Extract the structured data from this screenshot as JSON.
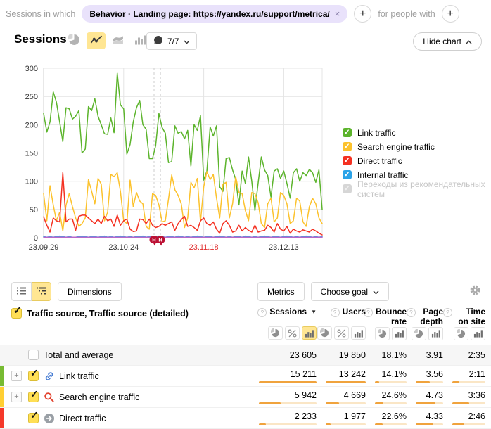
{
  "icons": {
    "plus": "+",
    "close": "×",
    "sort_desc": "▼",
    "help": "?",
    "expand": "+"
  },
  "filter_bar": {
    "prefix_label": "Sessions in which",
    "chip_text": "Behavior · Landing page: https://yandex.ru/support/metrica/",
    "suffix_label": "for people with"
  },
  "chart_header": {
    "title": "Sessions",
    "annotations_count": "7/7",
    "hide_chart_label": "Hide chart"
  },
  "chart_data": {
    "type": "line",
    "title": "Sessions",
    "ylim": [
      0,
      300
    ],
    "yticks": [
      0,
      50,
      100,
      150,
      200,
      250,
      300
    ],
    "xticks": [
      {
        "label": "23.09.29",
        "day": 0
      },
      {
        "label": "23.10.24",
        "day": 25
      },
      {
        "label": "23.11.18",
        "day": 50,
        "highlight": true
      },
      {
        "label": "23.12.13",
        "day": 75
      }
    ],
    "days_total": 88,
    "grid": true,
    "legend_position": "right",
    "annotation_markers": {
      "label": "Н",
      "days": [
        34.5,
        36.5
      ],
      "color": "#bc1134"
    },
    "series": [
      {
        "name": "Link traffic",
        "color": "#5cb42c",
        "values": [
          220,
          187,
          205,
          258,
          240,
          205,
          170,
          230,
          228,
          210,
          215,
          225,
          150,
          157,
          232,
          225,
          246,
          215,
          200,
          184,
          183,
          212,
          186,
          291,
          235,
          228,
          148,
          165,
          205,
          230,
          243,
          200,
          192,
          140,
          140,
          163,
          220,
          195,
          185,
          133,
          135,
          198,
          185,
          188,
          175,
          190,
          127,
          200,
          190,
          216,
          102,
          118,
          196,
          180,
          198,
          90,
          82,
          140,
          142,
          120,
          103,
          58,
          118,
          96,
          143,
          100,
          48,
          97,
          143,
          120,
          110,
          72,
          118,
          122,
          105,
          118,
          96,
          70,
          115,
          122,
          100,
          115,
          110,
          121,
          115,
          98,
          120,
          50
        ]
      },
      {
        "name": "Search engine traffic",
        "color": "#fcc22d",
        "values": [
          78,
          30,
          92,
          58,
          30,
          45,
          12,
          58,
          78,
          55,
          35,
          20,
          25,
          35,
          103,
          82,
          60,
          105,
          95,
          30,
          45,
          112,
          108,
          115,
          82,
          30,
          25,
          102,
          55,
          80,
          65,
          60,
          20,
          15,
          78,
          75,
          58,
          28,
          30,
          68,
          111,
          85,
          75,
          60,
          18,
          35,
          98,
          88,
          105,
          28,
          90,
          117,
          103,
          112,
          70,
          35,
          95,
          98,
          35,
          60,
          108,
          80,
          78,
          48,
          30,
          80,
          78,
          62,
          25,
          18,
          60,
          70,
          28,
          35,
          80,
          75,
          60,
          25,
          30,
          70,
          65,
          28,
          20,
          55,
          70,
          60,
          35,
          25
        ]
      },
      {
        "name": "Direct traffic",
        "color": "#f43122",
        "values": [
          37,
          22,
          10,
          35,
          30,
          28,
          115,
          28,
          33,
          33,
          13,
          38,
          40,
          40,
          35,
          30,
          25,
          33,
          25,
          38,
          30,
          33,
          20,
          40,
          22,
          30,
          33,
          15,
          11,
          12,
          33,
          32,
          25,
          33,
          22,
          18,
          20,
          25,
          22,
          25,
          28,
          13,
          25,
          32,
          38,
          20,
          22,
          18,
          13,
          30,
          35,
          25,
          22,
          28,
          15,
          8,
          25,
          30,
          22,
          10,
          12,
          22,
          12,
          18,
          13,
          10,
          22,
          10,
          12,
          13,
          22,
          18,
          10,
          25,
          15,
          12,
          20,
          8,
          15,
          12,
          10,
          14,
          12,
          10,
          15,
          12,
          8,
          5
        ]
      },
      {
        "name": "Internal traffic",
        "color": "#2ba3e8",
        "values": [
          2,
          1,
          2,
          1,
          2,
          3,
          2,
          1,
          2,
          1,
          1,
          2,
          3,
          2,
          1,
          2,
          2,
          1,
          2,
          3,
          1,
          2,
          1,
          2,
          3,
          2,
          1,
          2,
          1,
          2,
          2,
          3,
          1,
          2,
          1,
          2,
          3,
          2,
          1,
          2,
          2,
          1,
          3,
          2,
          1,
          2,
          1,
          2,
          3,
          2,
          1,
          2,
          2,
          1,
          2,
          3,
          2,
          1,
          2,
          1,
          2,
          2,
          1,
          3,
          2,
          1,
          2,
          1,
          2,
          3,
          2,
          1,
          2,
          2,
          1,
          2,
          3,
          2,
          1,
          2,
          1,
          2,
          3,
          2,
          1,
          2,
          1,
          2
        ]
      },
      {
        "name": "Переходы из рекомендательных систем",
        "color": "#b869c9",
        "constant": 1
      }
    ]
  },
  "legend": {
    "items": [
      {
        "label": "Link traffic",
        "color": "#5cb42c",
        "disabled": false
      },
      {
        "label": "Search engine traffic",
        "color": "#fcc22d",
        "disabled": false
      },
      {
        "label": "Direct traffic",
        "color": "#f43122",
        "disabled": false
      },
      {
        "label": "Internal traffic",
        "color": "#2ba3e8",
        "disabled": false
      },
      {
        "label": "Переходы из рекомендательных систем",
        "color": "#d6d6d6",
        "disabled": true
      }
    ]
  },
  "table_toolbar": {
    "dimensions_label": "Dimensions",
    "metrics_label": "Metrics",
    "choose_goal_label": "Choose goal"
  },
  "table": {
    "dimension_header": "Traffic source, Traffic source (detailed)",
    "columns": [
      {
        "label": "Sessions",
        "sorted": true,
        "toggles": [
          "pie",
          "percent",
          "bars"
        ],
        "active_toggle": "bars"
      },
      {
        "label": "Users",
        "sorted": false,
        "toggles": [
          "pie",
          "percent",
          "bars"
        ],
        "active_toggle": null
      },
      {
        "label": "Bounce rate",
        "sorted": false,
        "toggles": [
          "pie",
          "bars"
        ],
        "active_toggle": null
      },
      {
        "label": "Page depth",
        "sorted": false,
        "toggles": [
          "pie",
          "bars"
        ],
        "active_toggle": null
      },
      {
        "label": "Time on site",
        "sorted": false,
        "toggles": [
          "pie",
          "bars"
        ],
        "active_toggle": null
      }
    ],
    "rows": [
      {
        "label": "Total and average",
        "type": "total",
        "checked": false,
        "icon": null,
        "strip_color": null,
        "expandable": false,
        "values": [
          "23 605",
          "19 850",
          "18.1%",
          "3.91",
          "2:35"
        ],
        "bars": null
      },
      {
        "label": "Link traffic",
        "type": "data",
        "checked": true,
        "icon": "link",
        "strip_color": "#77bb32",
        "expandable": true,
        "values": [
          "15 211",
          "13 242",
          "14.1%",
          "3.56",
          "2:11"
        ],
        "bars": [
          1,
          1,
          0.13,
          0.5,
          0.22
        ]
      },
      {
        "label": "Search engine traffic",
        "type": "data",
        "checked": true,
        "icon": "search",
        "strip_color": "#ffcf33",
        "expandable": true,
        "values": [
          "5 942",
          "4 669",
          "24.6%",
          "4.73",
          "3:36"
        ],
        "bars": [
          0.38,
          0.34,
          0.27,
          0.71,
          0.52
        ]
      },
      {
        "label": "Direct traffic",
        "type": "data",
        "checked": true,
        "icon": "direct",
        "strip_color": "#f5392a",
        "expandable": false,
        "values": [
          "2 233",
          "1 977",
          "22.6%",
          "4.33",
          "2:46"
        ],
        "bars": [
          0.12,
          0.13,
          0.25,
          0.64,
          0.37
        ]
      }
    ]
  }
}
